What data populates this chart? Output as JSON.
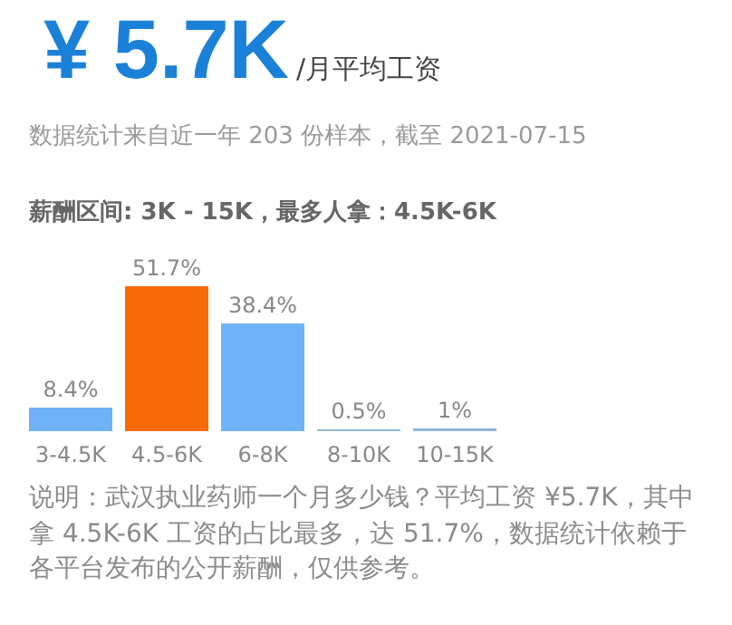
{
  "chart_data": {
    "type": "bar",
    "title": "¥ 5.7K",
    "subtitle": "/月平均工资",
    "annotations": [
      "数据统计来自近一年 203 份样本，截至 2021-07-15",
      "薪酬区间: 3K - 15K，最多人拿：4.5K-6K",
      "说明：武汉执业药师一个月多少钱？平均工资 ¥5.7K，其中拿 4.5K-6K 工资的占比最多，达 51.7%，数据统计依赖于各平台发布的公开薪酬，仅供参考。"
    ],
    "categories": [
      "3-4.5K",
      "4.5-6K",
      "6-8K",
      "8-10K",
      "10-15K"
    ],
    "values": [
      8.4,
      51.7,
      38.4,
      0.5,
      1
    ],
    "value_labels": [
      "8.4%",
      "51.7%",
      "38.4%",
      "0.5%",
      "1%"
    ],
    "colors": [
      "#6fb2f7",
      "#f76b06",
      "#6fb2f7",
      "#8fb6dd",
      "#8fb6dd"
    ]
  }
}
